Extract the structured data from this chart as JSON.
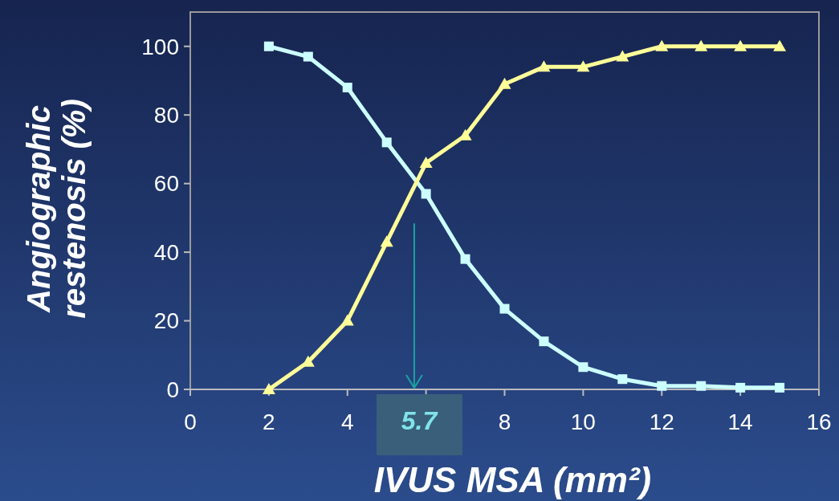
{
  "chart_data": {
    "type": "line",
    "xlabel": "IVUS MSA (mm²)",
    "ylabel": "Angiographic\nrestenosis (%)",
    "x": [
      2,
      3,
      4,
      5,
      6,
      7,
      8,
      9,
      10,
      11,
      12,
      13,
      14,
      15
    ],
    "series": [
      {
        "color": "#ccffff",
        "marker": "square",
        "values": [
          100,
          97,
          88,
          72,
          57,
          38,
          23.5,
          14,
          6.5,
          3,
          1,
          1,
          0.5,
          0.5
        ]
      },
      {
        "color": "#ffff99",
        "marker": "triangle",
        "values": [
          0,
          8,
          20,
          43,
          66,
          74,
          89,
          94,
          94,
          97,
          100,
          100,
          100,
          100
        ]
      }
    ],
    "xlim": [
      0,
      16
    ],
    "xticks": [
      0,
      2,
      4,
      {
        "value": 6,
        "label": null
      },
      8,
      10,
      12,
      14,
      16
    ],
    "ylim": [
      0,
      110
    ],
    "yticks": [
      0,
      20,
      40,
      60,
      80,
      100
    ],
    "ref_lines": [
      {
        "axis": "x",
        "value": 5.7,
        "label": "5.7",
        "color": "#1aa3a0"
      }
    ],
    "grid": false,
    "line_style": "solid"
  }
}
